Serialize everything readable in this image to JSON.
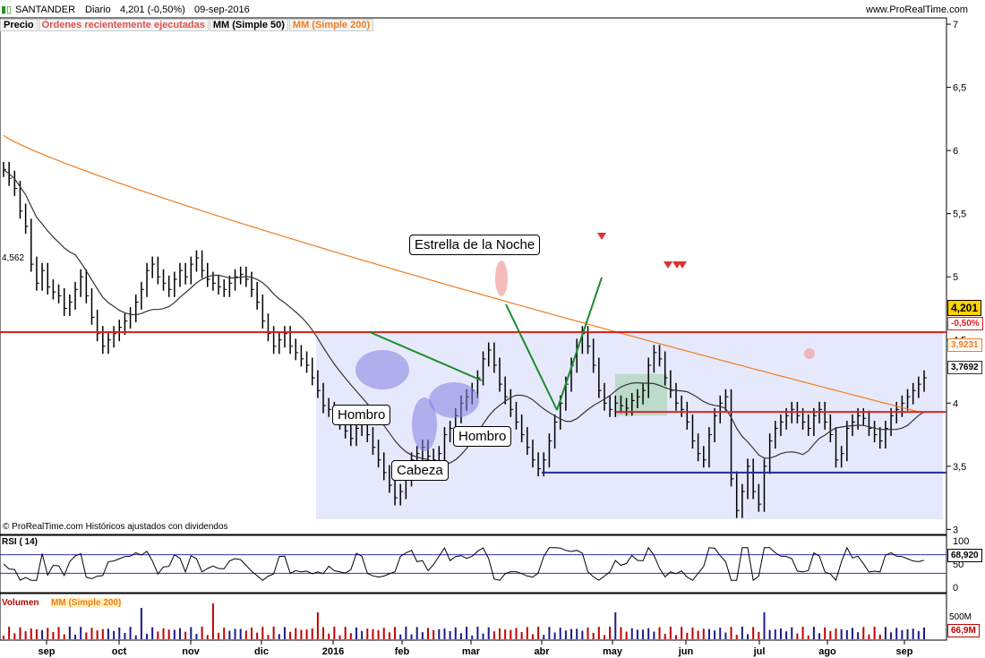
{
  "header": {
    "ticker": "SANTANDER",
    "period": "Diario",
    "quote": "4,201 (-0,50%)",
    "date": "09-sep-2016",
    "site": "www.ProRealTime.com"
  },
  "legend": {
    "price": "Precio",
    "orders": "Órdenes recientemente ejecutadas",
    "ma50": "MM (Simple 50)",
    "ma200": "MM (Simple 200)"
  },
  "footer_note": "© ProRealTime.com Históricos ajustados con dividendos",
  "rsi_label": "RSI ( 14)",
  "volume_label": "Volumen",
  "volume_ma_label": "MM (Simple 200)",
  "annotations": {
    "evening_star": "Estrella de la Noche",
    "head": "Cabeza",
    "shoulder_left": "Hombro",
    "shoulder_right": "Hombro"
  },
  "price_tags": {
    "resistance_label": "4,562",
    "last": "4,201",
    "change": "-0,50%",
    "ma200_value": "3,9231",
    "ma50_value": "3,7692"
  },
  "rsi_tags": {
    "value": "68,920"
  },
  "volume_tags": {
    "value": "66,9M",
    "axis": "500M"
  },
  "colors": {
    "candles": "#000000",
    "ma200": "#f07c1e",
    "ma50": "#333333",
    "resistance": "#e02020",
    "support": "#1f2aa0",
    "trend": "#1a8c2a",
    "zone": "#e6e9fb",
    "ellipse": "#8080e0",
    "rsi": "#000000",
    "vol_up": "#1a1a8c",
    "vol_down": "#c00000"
  },
  "chart_data": {
    "type": "candlestick",
    "x_ticks": [
      "sep",
      "oct",
      "nov",
      "dic",
      "2016",
      "feb",
      "mar",
      "abr",
      "may",
      "jun",
      "jul",
      "ago",
      "sep"
    ],
    "y_ticks": [
      "7",
      "6,5",
      "6",
      "5,5",
      "5",
      "4,5",
      "4",
      "3,5",
      "3"
    ],
    "y_range": [
      2.96,
      7.05
    ],
    "rsi_ticks": [
      "100",
      "50",
      "0"
    ],
    "resistance": 4.562,
    "support": 3.45,
    "mid_line": 3.93,
    "approx_close_series": [
      5.85,
      5.78,
      5.7,
      5.52,
      5.4,
      5.1,
      4.95,
      5.05,
      4.92,
      4.88,
      4.85,
      4.75,
      4.8,
      4.9,
      5.0,
      4.85,
      4.68,
      4.55,
      4.45,
      4.5,
      4.55,
      4.6,
      4.65,
      4.7,
      4.8,
      4.9,
      5.05,
      5.1,
      5.0,
      4.95,
      4.9,
      4.98,
      5.05,
      5.0,
      5.1,
      5.15,
      5.05,
      4.98,
      4.95,
      4.92,
      4.9,
      4.95,
      5.0,
      5.02,
      4.98,
      4.9,
      4.8,
      4.65,
      4.55,
      4.45,
      4.5,
      4.55,
      4.45,
      4.4,
      4.35,
      4.3,
      4.2,
      4.1,
      3.98,
      3.95,
      3.9,
      3.85,
      3.78,
      3.72,
      3.8,
      3.85,
      3.75,
      3.65,
      3.55,
      3.45,
      3.35,
      3.25,
      3.3,
      3.4,
      3.55,
      3.6,
      3.65,
      3.58,
      3.55,
      3.6,
      3.75,
      3.8,
      3.9,
      4.0,
      4.05,
      4.1,
      4.2,
      4.35,
      4.42,
      4.3,
      4.15,
      4.05,
      3.95,
      3.85,
      3.75,
      3.65,
      3.55,
      3.48,
      3.55,
      3.7,
      3.85,
      4.0,
      4.15,
      4.3,
      4.45,
      4.55,
      4.45,
      4.3,
      4.1,
      4.0,
      3.95,
      4.0,
      3.98,
      3.96,
      4.02,
      4.05,
      4.1,
      4.3,
      4.4,
      4.35,
      4.2,
      4.1,
      4.0,
      3.95,
      3.85,
      3.7,
      3.6,
      3.55,
      3.75,
      3.9,
      4.0,
      4.05,
      3.4,
      3.15,
      3.3,
      3.5,
      3.3,
      3.2,
      3.5,
      3.7,
      3.8,
      3.85,
      3.9,
      3.95,
      3.9,
      3.85,
      3.8,
      3.9,
      3.95,
      3.85,
      3.75,
      3.55,
      3.6,
      3.8,
      3.85,
      3.9,
      3.88,
      3.8,
      3.75,
      3.7,
      3.8,
      3.9,
      3.95,
      4.0,
      4.05,
      4.1,
      4.15,
      4.2
    ]
  }
}
